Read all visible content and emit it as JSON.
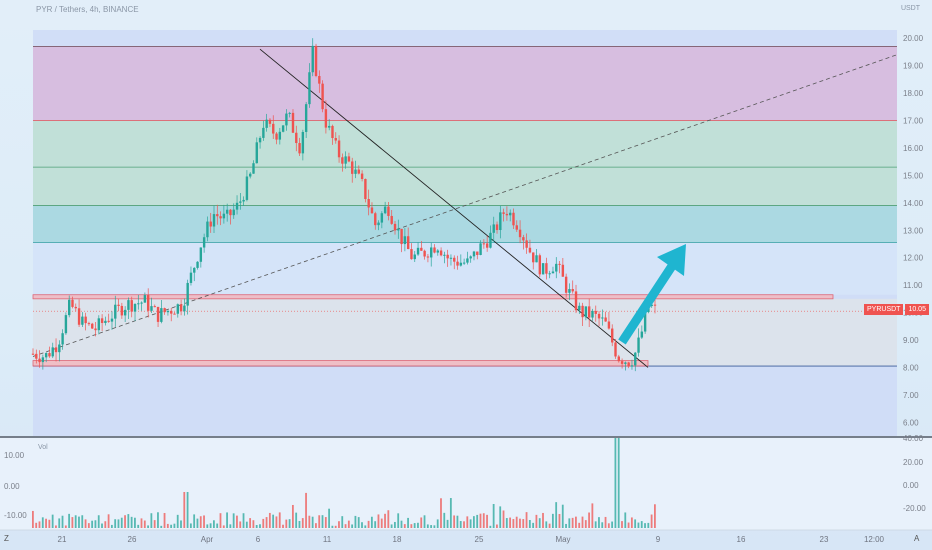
{
  "header": {
    "title": "PYR / Tethers, 4h, BINANCE",
    "quote": "USDT"
  },
  "price_badge": {
    "symbol": "PYRUSDT",
    "value": "10.05"
  },
  "volume_label": "Vol",
  "corner": {
    "left": "Z",
    "right": "A"
  },
  "colors": {
    "up": "#26a69a",
    "down": "#ef5350",
    "arrow": "#1fb5d0",
    "zone_purple": "#d8b8dc",
    "zone_green": "#bfe0d4",
    "zone_teal": "#a9d8e0",
    "zone_blue": "#cdd9f6",
    "zone_gray": "#dde3ea",
    "resistance": "#f3b9c0"
  },
  "chart_data": {
    "type": "candlestick",
    "y_ticks": [
      "20.00",
      "19.00",
      "18.00",
      "17.00",
      "16.00",
      "15.00",
      "14.00",
      "13.00",
      "12.00",
      "11.00",
      "10.00",
      "9.00",
      "8.00",
      "7.00",
      "6.00"
    ],
    "ylim": [
      5.5,
      20.3
    ],
    "x_ticks": [
      "21",
      "26",
      "Apr",
      "6",
      "11",
      "18",
      "25",
      "May",
      "9",
      "16",
      "23",
      "12:00"
    ],
    "volume_y_ticks_left": [
      "10.00",
      "0.00",
      "-10.00"
    ],
    "volume_y_ticks_right": [
      "40.00",
      "20.00",
      "0.00",
      "-20.00"
    ],
    "current_price": 10.05,
    "fib_levels": [
      19.7,
      17.0,
      15.3,
      13.9,
      12.55,
      8.05
    ],
    "resistance_zone": [
      10.5,
      10.65
    ],
    "support_zone": [
      8.05,
      8.25
    ],
    "trendline_down": [
      [
        6,
        19.6
      ],
      [
        1,
        8.0
      ]
    ],
    "trendline_up_dashed": [
      [
        0,
        8.4
      ],
      [
        1,
        19.4
      ]
    ],
    "price_path": [
      [
        0,
        8.5
      ],
      [
        0.02,
        8.4
      ],
      [
        0.04,
        8.9
      ],
      [
        0.06,
        10.3
      ],
      [
        0.08,
        9.6
      ],
      [
        0.1,
        9.4
      ],
      [
        0.12,
        9.8
      ],
      [
        0.15,
        10.3
      ],
      [
        0.18,
        10.4
      ],
      [
        0.2,
        9.9
      ],
      [
        0.22,
        10.1
      ],
      [
        0.24,
        10.3
      ],
      [
        0.27,
        12.5
      ],
      [
        0.29,
        13.6
      ],
      [
        0.31,
        13.4
      ],
      [
        0.33,
        13.9
      ],
      [
        0.35,
        15.0
      ],
      [
        0.37,
        16.9
      ],
      [
        0.39,
        16.5
      ],
      [
        0.41,
        17.2
      ],
      [
        0.43,
        16.0
      ],
      [
        0.45,
        19.5
      ],
      [
        0.47,
        17.0
      ],
      [
        0.49,
        15.8
      ],
      [
        0.51,
        15.4
      ],
      [
        0.53,
        14.6
      ],
      [
        0.55,
        13.2
      ],
      [
        0.57,
        13.9
      ],
      [
        0.59,
        12.8
      ],
      [
        0.61,
        12.0
      ],
      [
        0.63,
        12.2
      ],
      [
        0.65,
        12.5
      ],
      [
        0.67,
        11.9
      ],
      [
        0.7,
        11.8
      ],
      [
        0.72,
        12.4
      ],
      [
        0.74,
        12.9
      ],
      [
        0.76,
        13.8
      ],
      [
        0.78,
        13.2
      ],
      [
        0.8,
        12.2
      ],
      [
        0.82,
        11.5
      ],
      [
        0.84,
        11.8
      ],
      [
        0.86,
        10.8
      ],
      [
        0.88,
        10.0
      ],
      [
        0.9,
        9.9
      ],
      [
        0.92,
        9.6
      ],
      [
        0.94,
        8.4
      ],
      [
        0.96,
        8.2
      ],
      [
        0.97,
        8.6
      ],
      [
        0.98,
        9.4
      ],
      [
        0.99,
        10.3
      ],
      [
        1.0,
        10.1
      ]
    ],
    "volume_spikes": [
      [
        0.245,
        12
      ],
      [
        0.74,
        8
      ],
      [
        0.94,
        30
      ]
    ]
  }
}
